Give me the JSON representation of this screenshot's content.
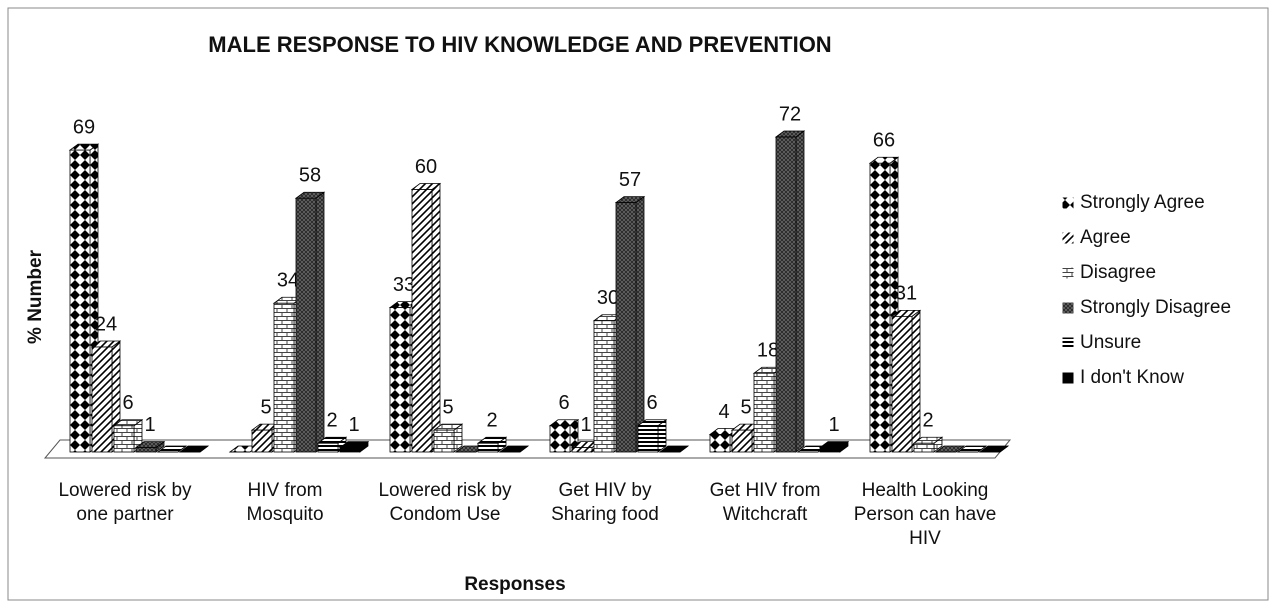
{
  "chart_data": {
    "type": "bar3d",
    "title": "MALE RESPONSE TO HIV KNOWLEDGE AND PREVENTION",
    "y_label": "% Number",
    "x_label": "Responses",
    "categories": [
      "Lowered risk by one partner",
      "HIV from Mosquito",
      "Lowered risk by Condom Use",
      "Get HIV by Sharing food",
      "Get HIV from Witchcraft",
      "Health Looking Person can have HIV"
    ],
    "series": [
      {
        "name": "Strongly Agree",
        "color": "#000000",
        "values": [
          69,
          0,
          33,
          6,
          4,
          66
        ]
      },
      {
        "name": "Agree",
        "color": "#000000",
        "values": [
          24,
          5,
          60,
          1,
          5,
          31
        ]
      },
      {
        "name": "Disagree",
        "color": "#000000",
        "values": [
          6,
          34,
          5,
          30,
          18,
          2
        ]
      },
      {
        "name": "Strongly Disagree",
        "color": "#000000",
        "values": [
          1,
          58,
          0,
          57,
          72,
          0
        ]
      },
      {
        "name": "Unsure",
        "color": "#000000",
        "values": [
          0,
          2,
          2,
          6,
          0,
          0
        ]
      },
      {
        "name": "I don't Know",
        "color": "#000000",
        "values": [
          0,
          1,
          0,
          0,
          1,
          0
        ]
      }
    ],
    "ylim": [
      0,
      80
    ],
    "legend": "right"
  }
}
